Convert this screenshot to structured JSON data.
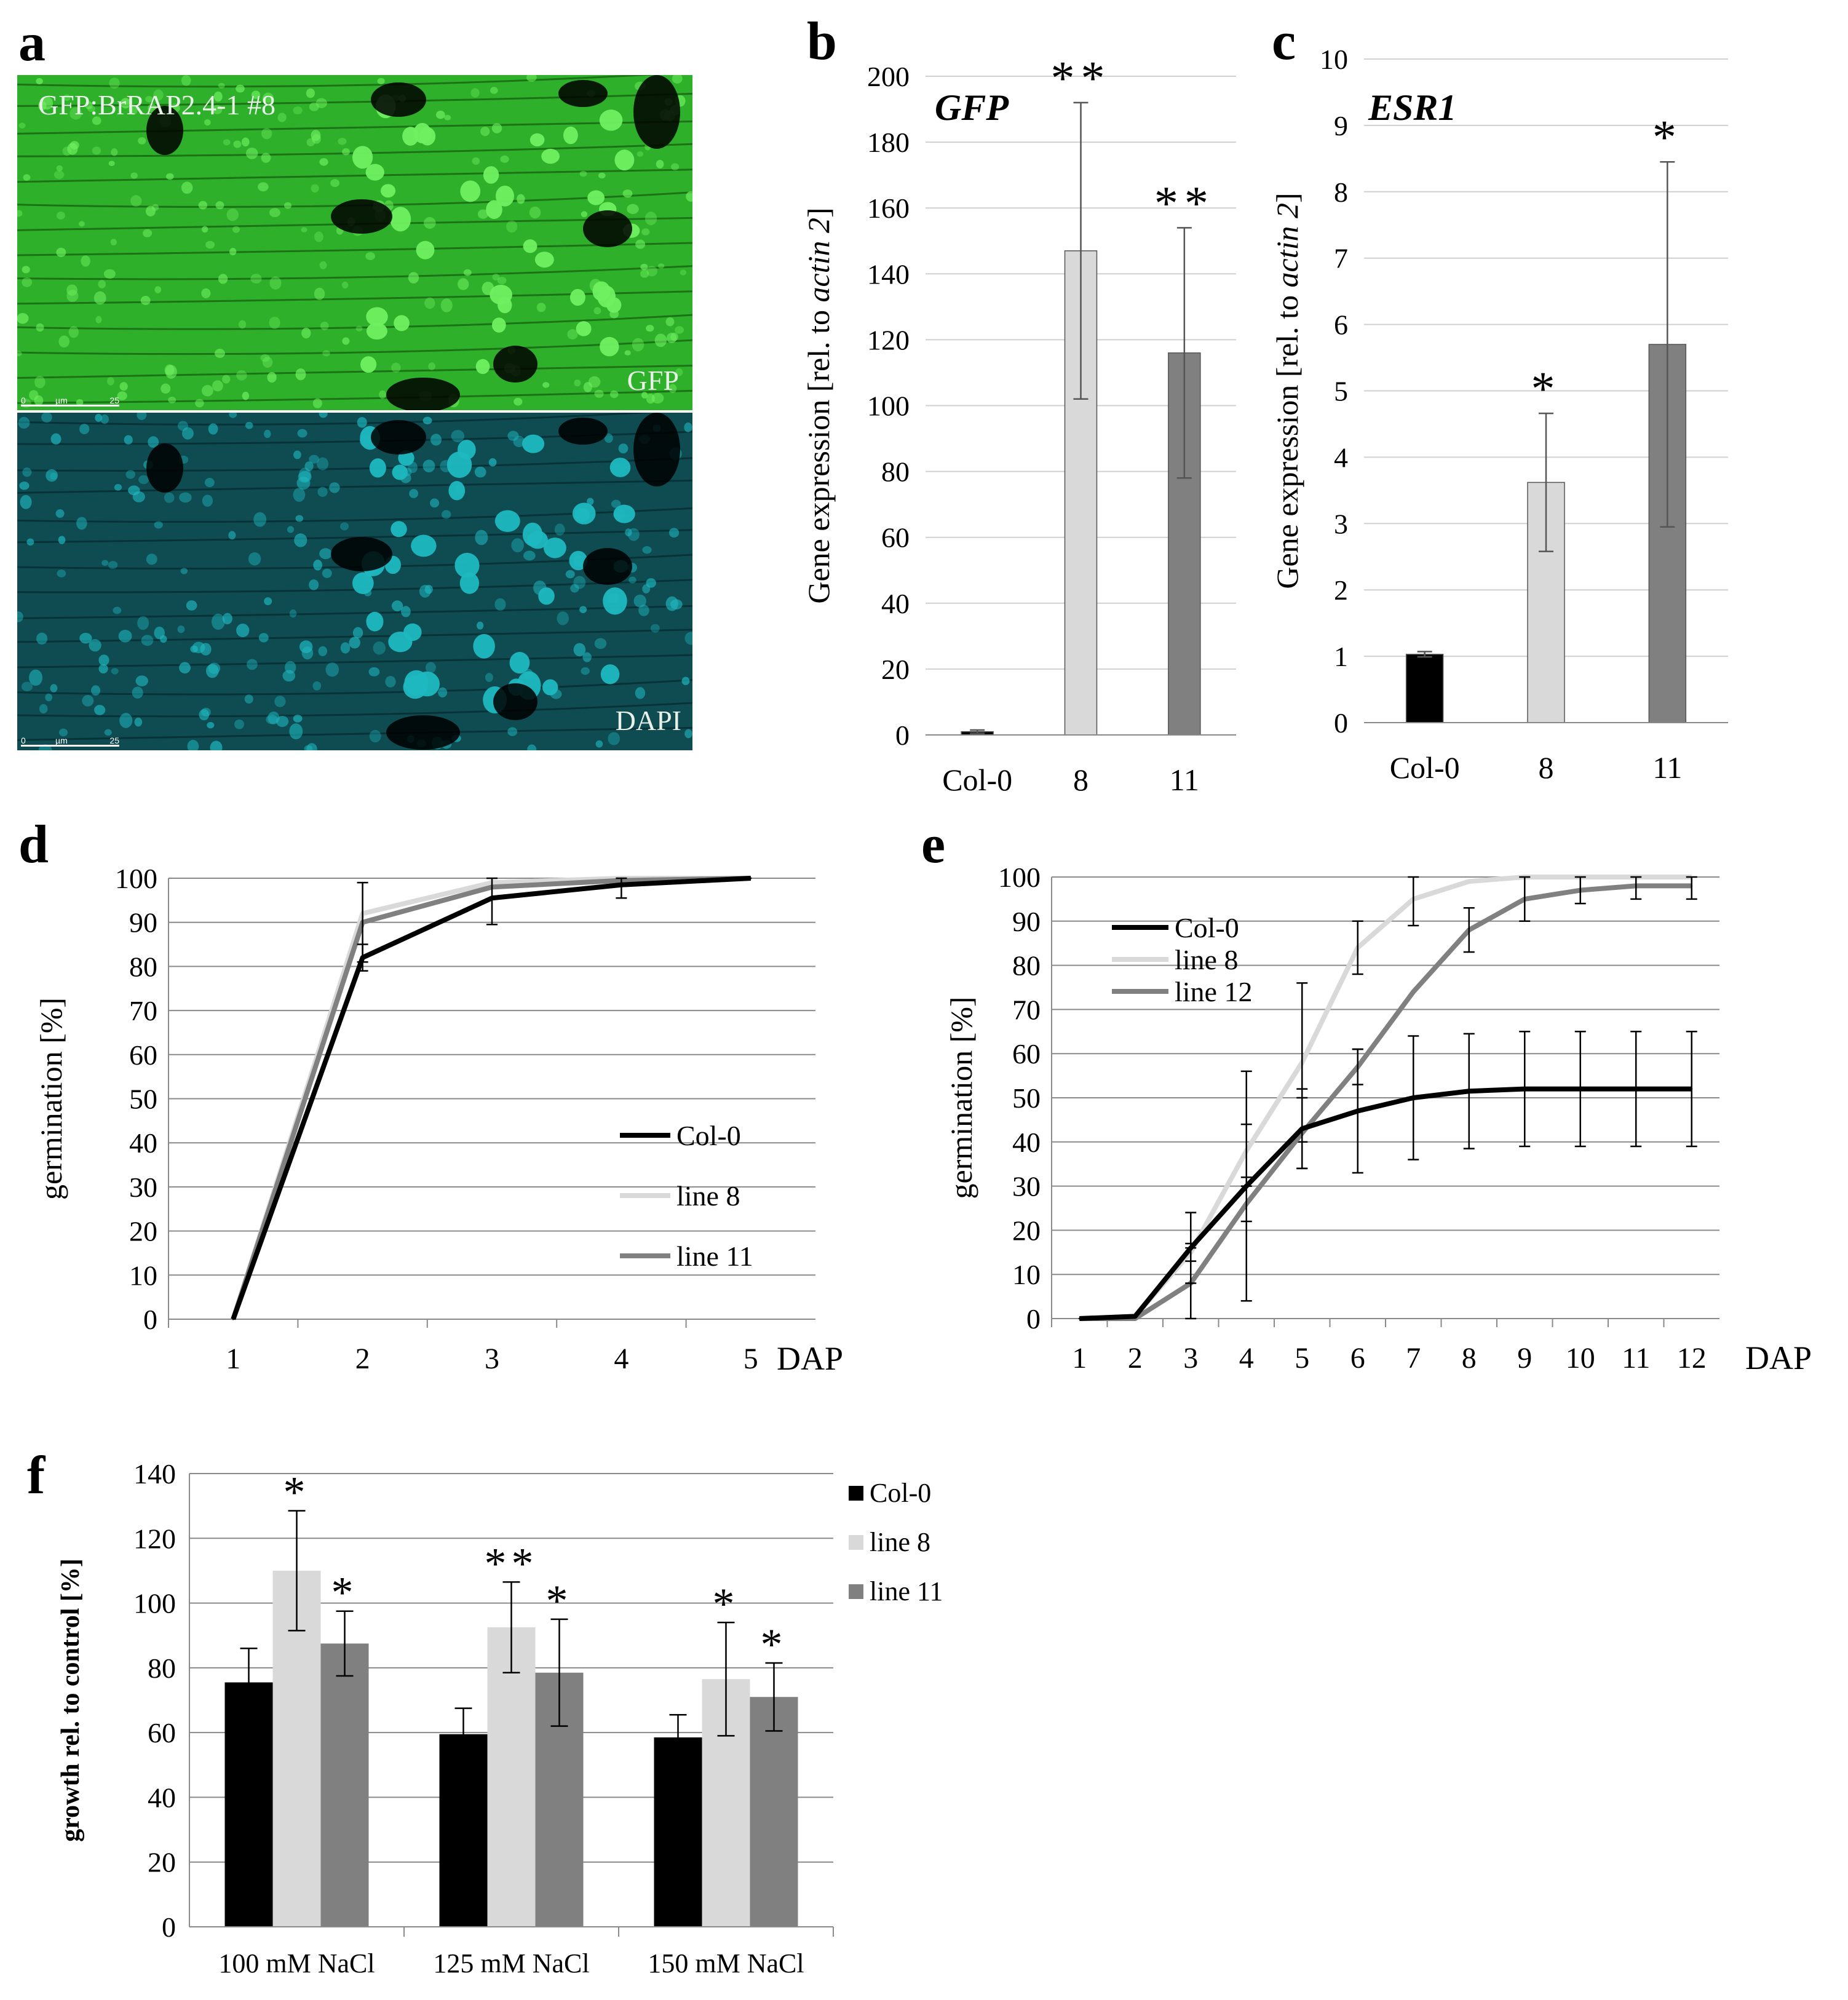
{
  "figure": {
    "panel_labels": {
      "a": "a",
      "b": "b",
      "c": "c",
      "d": "d",
      "e": "e",
      "f": "f"
    }
  },
  "panel_a": {
    "title": "GFP:BrRAP2.4-1 #8",
    "top_label": "GFP",
    "bottom_label": "DAPI",
    "scalebar": {
      "start": "0",
      "unit": "µm",
      "end": "25"
    },
    "colors": {
      "gfp": "#2fb02a",
      "dapi": "#1fb8c0"
    }
  },
  "chart_data": [
    {
      "id": "b",
      "type": "bar",
      "title": "GFP",
      "ylabel_prefix": "Gene expression [rel. to ",
      "ylabel_italic": "actin 2",
      "ylabel_suffix": "]",
      "categories": [
        "Col-0",
        "8",
        "11"
      ],
      "values": [
        1,
        147,
        116
      ],
      "errors": [
        0.5,
        45,
        38
      ],
      "significance": [
        "",
        "**",
        "**"
      ],
      "colors": [
        "#000000",
        "#d9d9d9",
        "#808080"
      ],
      "ylim": [
        0,
        200
      ],
      "yticks": [
        0,
        20,
        40,
        60,
        80,
        100,
        120,
        140,
        160,
        180,
        200
      ],
      "grid": true
    },
    {
      "id": "c",
      "type": "bar",
      "title": "ESR1",
      "ylabel_prefix": "Gene expression [rel. to ",
      "ylabel_italic": "actin 2",
      "ylabel_suffix": "]",
      "categories": [
        "Col-0",
        "8",
        "11"
      ],
      "values": [
        1.03,
        3.62,
        5.7
      ],
      "errors": [
        0.04,
        1.04,
        2.75
      ],
      "significance": [
        "",
        "*",
        "*"
      ],
      "colors": [
        "#000000",
        "#d9d9d9",
        "#808080"
      ],
      "ylim": [
        0,
        10
      ],
      "yticks": [
        0,
        1,
        2,
        3,
        4,
        5,
        6,
        7,
        8,
        9,
        10
      ],
      "grid": true
    },
    {
      "id": "d",
      "type": "line",
      "xlabel": "DAP",
      "ylabel": "germination [%]",
      "x": [
        1,
        2,
        3,
        4,
        5
      ],
      "xlim": [
        0.5,
        5.5
      ],
      "ylim": [
        0,
        100
      ],
      "yticks": [
        0,
        10,
        20,
        30,
        40,
        50,
        60,
        70,
        80,
        90,
        100
      ],
      "series": [
        {
          "name": "line 8",
          "color": "#d9d9d9",
          "values": [
            0,
            92,
            99,
            100,
            100
          ],
          "errors": [
            0,
            0,
            0,
            0,
            0
          ]
        },
        {
          "name": "line 11",
          "color": "#808080",
          "values": [
            0,
            90,
            98,
            99.5,
            100
          ],
          "errors": [
            0,
            9,
            0,
            0,
            0
          ]
        },
        {
          "name": "Col-0",
          "color": "#000000",
          "values": [
            0,
            82,
            95.5,
            98.5,
            100
          ],
          "errors": [
            0,
            3,
            6,
            3,
            0
          ]
        }
      ],
      "legend_order": [
        "Col-0",
        "line 8",
        "line 11"
      ],
      "legend": "right"
    },
    {
      "id": "e",
      "type": "line",
      "xlabel": "DAP",
      "ylabel": "germination [%]",
      "x": [
        1,
        2,
        3,
        4,
        5,
        6,
        7,
        8,
        9,
        10,
        11,
        12
      ],
      "xlim": [
        0.5,
        12.5
      ],
      "ylim": [
        0,
        100
      ],
      "yticks": [
        0,
        10,
        20,
        30,
        40,
        50,
        60,
        70,
        80,
        90,
        100
      ],
      "series": [
        {
          "name": "line 8",
          "color": "#d9d9d9",
          "values": [
            0,
            0.5,
            15,
            38,
            58,
            84,
            95,
            99,
            100,
            100,
            100,
            100
          ],
          "errors": [
            0,
            0,
            2,
            6,
            18,
            6,
            6,
            0,
            0,
            0,
            0,
            0
          ]
        },
        {
          "name": "line 12",
          "color": "#808080",
          "values": [
            0,
            0,
            8,
            26,
            42,
            57,
            74,
            88,
            95,
            97,
            98,
            98
          ],
          "errors": [
            0,
            0,
            8,
            4,
            8,
            4,
            0,
            5,
            5,
            3,
            3,
            3
          ]
        },
        {
          "name": "Col-0",
          "color": "#000000",
          "values": [
            0,
            0.5,
            16,
            30,
            43,
            47,
            50,
            51.5,
            52,
            52,
            52,
            52
          ],
          "errors": [
            0,
            0,
            8,
            26,
            9,
            14,
            14,
            13,
            13,
            13,
            13,
            13
          ]
        }
      ],
      "legend_order": [
        "Col-0",
        "line 8",
        "line 12"
      ],
      "legend": "top-left"
    },
    {
      "id": "f",
      "type": "bar",
      "ylabel": "growth rel. to control [%]",
      "categories": [
        "100 mM NaCl",
        "125 mM NaCl",
        "150 mM NaCl"
      ],
      "series": [
        {
          "name": "Col-0",
          "color": "#000000",
          "values": [
            75.5,
            59.5,
            58.5
          ],
          "errors": [
            10.5,
            8,
            7
          ],
          "significance": [
            "",
            "",
            ""
          ]
        },
        {
          "name": "line 8",
          "color": "#d9d9d9",
          "values": [
            110,
            92.5,
            76.5
          ],
          "errors": [
            18.5,
            14,
            17.5
          ],
          "significance": [
            "*",
            "**",
            "*"
          ]
        },
        {
          "name": "line 11",
          "color": "#808080",
          "values": [
            87.5,
            78.5,
            71
          ],
          "errors": [
            10,
            16.5,
            10.5
          ],
          "significance": [
            "*",
            "*",
            "*"
          ]
        }
      ],
      "ylim": [
        0,
        140
      ],
      "yticks": [
        0,
        20,
        40,
        60,
        80,
        100,
        120,
        140
      ],
      "grid": true,
      "legend": "right"
    }
  ]
}
